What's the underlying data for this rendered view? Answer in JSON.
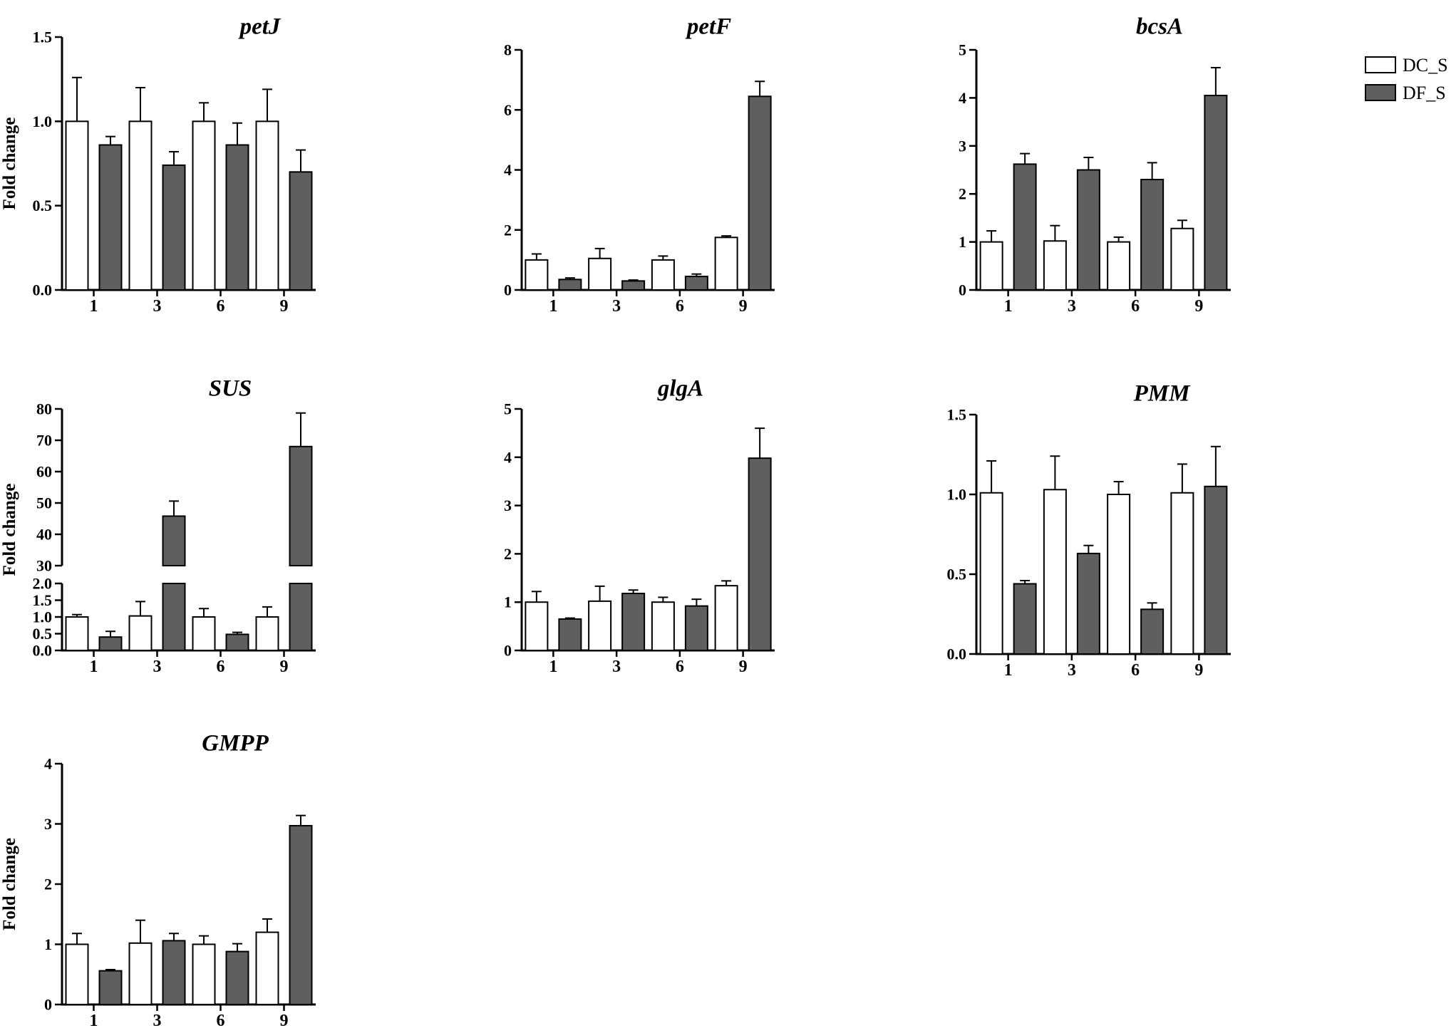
{
  "colors": {
    "dc": "#ffffff",
    "df": "#5f5f5f",
    "stroke": "#000000"
  },
  "legend": {
    "items": [
      {
        "label": "DC_S",
        "color": "#ffffff"
      },
      {
        "label": "DF_S",
        "color": "#5f5f5f"
      }
    ]
  },
  "chart_data": [
    {
      "type": "bar",
      "title": "petJ",
      "ylabel": "Fold change",
      "categories": [
        "1",
        "3",
        "6",
        "9"
      ],
      "ylim": [
        0,
        1.5
      ],
      "yticks": [
        "0.0",
        "0.5",
        "1.0",
        "1.5"
      ],
      "series": [
        {
          "name": "DC_S",
          "values": [
            1.0,
            1.0,
            1.0,
            1.0
          ],
          "errors": [
            0.26,
            0.2,
            0.11,
            0.19
          ]
        },
        {
          "name": "DF_S",
          "values": [
            0.86,
            0.74,
            0.86,
            0.7
          ],
          "errors": [
            0.05,
            0.08,
            0.13,
            0.13
          ]
        }
      ]
    },
    {
      "type": "bar",
      "title": "petF",
      "ylabel": "",
      "categories": [
        "1",
        "3",
        "6",
        "9"
      ],
      "ylim": [
        0,
        8
      ],
      "yticks": [
        "0",
        "2",
        "4",
        "6",
        "8"
      ],
      "series": [
        {
          "name": "DC_S",
          "values": [
            1.0,
            1.05,
            1.0,
            1.75
          ],
          "errors": [
            0.2,
            0.33,
            0.13,
            0.05
          ]
        },
        {
          "name": "DF_S",
          "values": [
            0.35,
            0.3,
            0.45,
            6.45
          ],
          "errors": [
            0.05,
            0.03,
            0.08,
            0.5
          ]
        }
      ]
    },
    {
      "type": "bar",
      "title": "bcsA",
      "ylabel": "",
      "categories": [
        "1",
        "3",
        "6",
        "9"
      ],
      "ylim": [
        0,
        5
      ],
      "yticks": [
        "0",
        "1",
        "2",
        "3",
        "4",
        "5"
      ],
      "series": [
        {
          "name": "DC_S",
          "values": [
            1.0,
            1.02,
            1.0,
            1.28
          ],
          "errors": [
            0.23,
            0.32,
            0.1,
            0.17
          ]
        },
        {
          "name": "DF_S",
          "values": [
            2.62,
            2.5,
            2.3,
            4.05
          ],
          "errors": [
            0.22,
            0.26,
            0.35,
            0.58
          ]
        }
      ]
    },
    {
      "type": "bar",
      "title": "SUS",
      "ylabel": "Fold change",
      "categories": [
        "1",
        "3",
        "6",
        "9"
      ],
      "ylim": [
        0,
        80
      ],
      "broken_axis": [
        2,
        30
      ],
      "yticks": [
        "0.0",
        "0.5",
        "1.0",
        "1.5",
        "2.0",
        "30",
        "40",
        "50",
        "60",
        "70",
        "80"
      ],
      "series": [
        {
          "name": "DC_S",
          "values": [
            1.0,
            1.03,
            1.0,
            1.0
          ],
          "errors": [
            0.07,
            0.43,
            0.25,
            0.3
          ]
        },
        {
          "name": "DF_S",
          "values": [
            0.4,
            45.8,
            0.48,
            68.0
          ],
          "errors": [
            0.17,
            4.8,
            0.06,
            10.7
          ]
        }
      ]
    },
    {
      "type": "bar",
      "title": "glgA",
      "ylabel": "",
      "categories": [
        "1",
        "3",
        "6",
        "9"
      ],
      "ylim": [
        0,
        5
      ],
      "yticks": [
        "0",
        "1",
        "2",
        "3",
        "4",
        "5"
      ],
      "series": [
        {
          "name": "DC_S",
          "values": [
            1.0,
            1.02,
            1.0,
            1.34
          ],
          "errors": [
            0.22,
            0.31,
            0.1,
            0.1
          ]
        },
        {
          "name": "DF_S",
          "values": [
            0.65,
            1.18,
            0.92,
            3.98
          ],
          "errors": [
            0.02,
            0.07,
            0.14,
            0.62
          ]
        }
      ]
    },
    {
      "type": "bar",
      "title": "PMM",
      "ylabel": "",
      "categories": [
        "1",
        "3",
        "6",
        "9"
      ],
      "ylim": [
        0,
        1.5
      ],
      "yticks": [
        "0.0",
        "0.5",
        "1.0",
        "1.5"
      ],
      "series": [
        {
          "name": "DC_S",
          "values": [
            1.01,
            1.03,
            1.0,
            1.01
          ],
          "errors": [
            0.2,
            0.21,
            0.08,
            0.18
          ]
        },
        {
          "name": "DF_S",
          "values": [
            0.44,
            0.63,
            0.28,
            1.05
          ],
          "errors": [
            0.02,
            0.05,
            0.04,
            0.25
          ]
        }
      ]
    },
    {
      "type": "bar",
      "title": "GMPP",
      "ylabel": "Fold change",
      "categories": [
        "1",
        "3",
        "6",
        "9"
      ],
      "ylim": [
        0,
        4
      ],
      "yticks": [
        "0",
        "1",
        "2",
        "3",
        "4"
      ],
      "series": [
        {
          "name": "DC_S",
          "values": [
            1.0,
            1.02,
            1.0,
            1.2
          ],
          "errors": [
            0.18,
            0.38,
            0.14,
            0.22
          ]
        },
        {
          "name": "DF_S",
          "values": [
            0.56,
            1.06,
            0.88,
            2.97
          ],
          "errors": [
            0.02,
            0.12,
            0.13,
            0.17
          ]
        }
      ]
    }
  ]
}
